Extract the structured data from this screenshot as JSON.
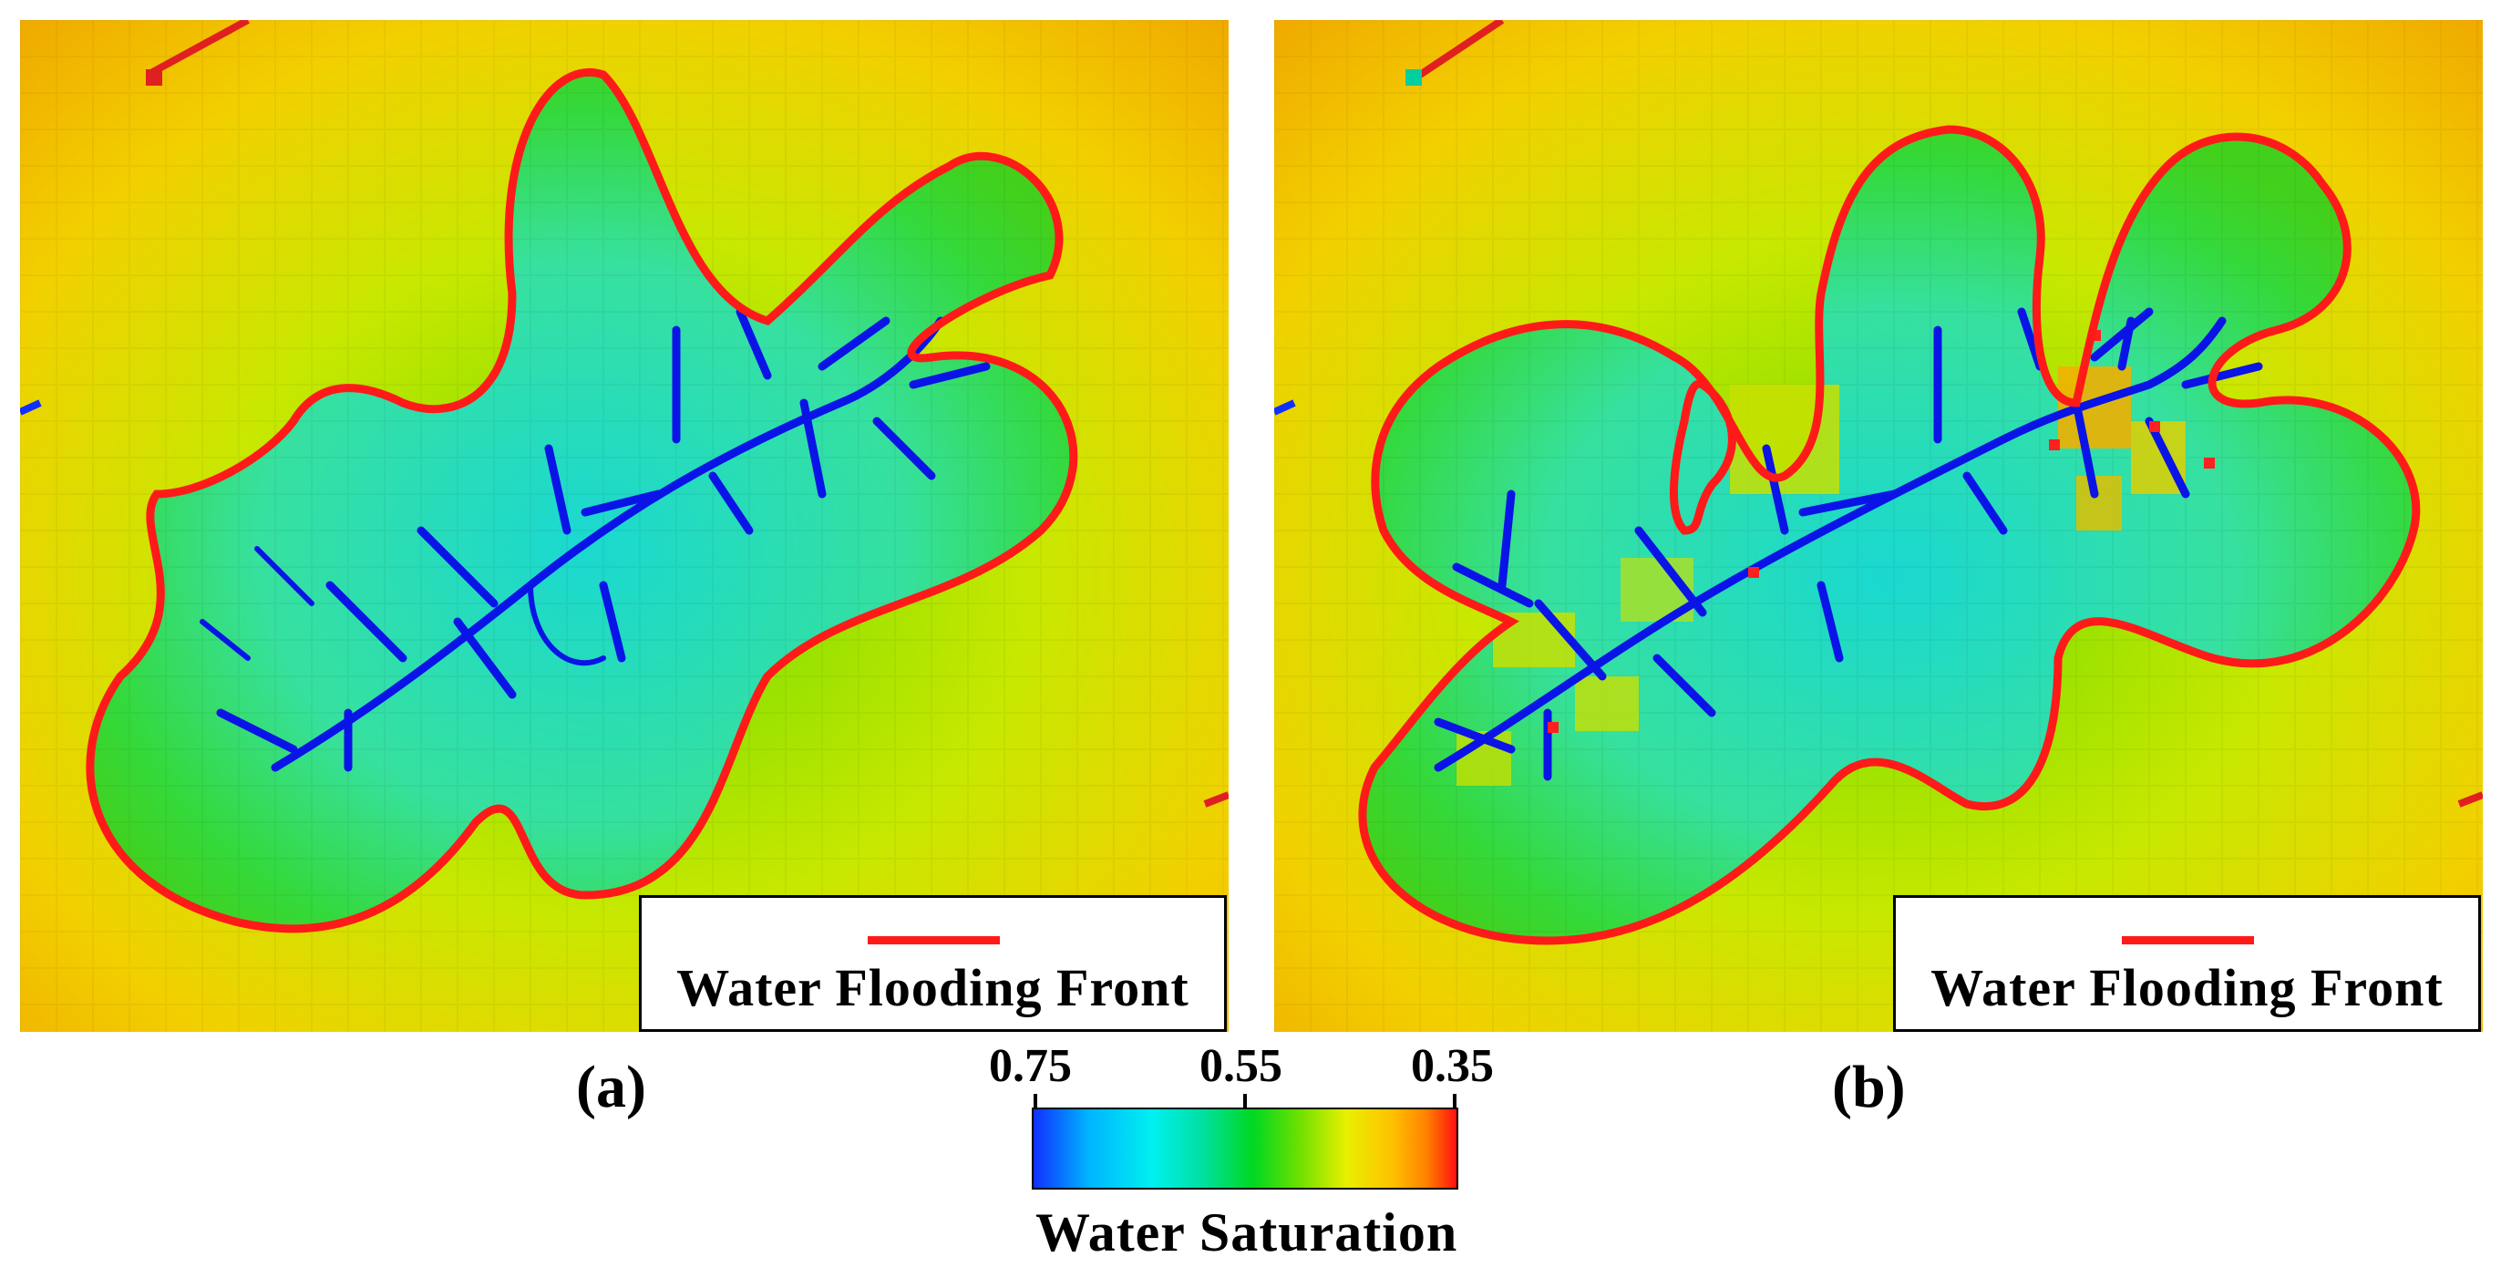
{
  "panels": [
    {
      "label": "(a)",
      "legend_label": "Water Flooding Front"
    },
    {
      "label": "(b)",
      "legend_label": "Water Flooding Front"
    }
  ],
  "colorbar": {
    "title": "Water Saturation",
    "ticks": [
      "0.75",
      "0.55",
      "0.35"
    ],
    "range": [
      0.75,
      0.35
    ]
  },
  "colors": {
    "flooding_front": "#ff1a1a",
    "fracture_network": "#0a14e6",
    "background_high_saturation": "#00e0e0",
    "background_low_saturation": "#ffb000"
  }
}
